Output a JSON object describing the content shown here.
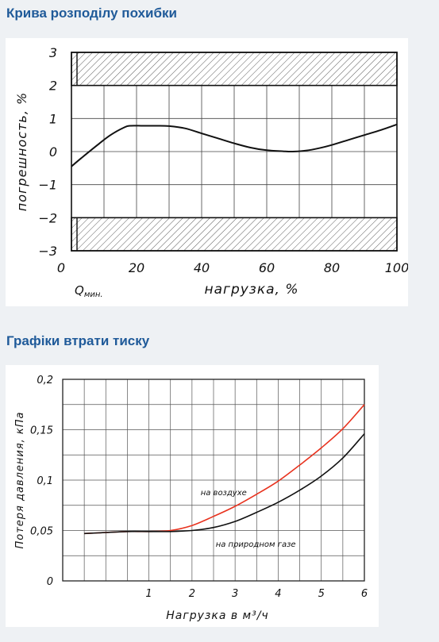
{
  "sections": [
    {
      "title": "Крива розподілу похибки"
    },
    {
      "title": "Графіки втрати тиску"
    }
  ],
  "chart_data": [
    {
      "type": "line",
      "title": "",
      "xlabel": "нагрузка, %",
      "ylabel": "погрешность, %",
      "x_min_label": "Qмин.",
      "x_min_label_main": "Q",
      "x_min_label_sub": "мин.",
      "xlim": [
        0,
        100
      ],
      "ylim": [
        -3,
        3
      ],
      "x_ticks": [
        "0",
        "20",
        "40",
        "60",
        "80",
        "100"
      ],
      "y_ticks": [
        "3",
        "2",
        "1",
        "0",
        "−1",
        "−2",
        "−3"
      ],
      "grid": true,
      "hatched_bands": [
        [
          2,
          3
        ],
        [
          -3,
          -2
        ]
      ],
      "series": [
        {
          "x": [
            0,
            3,
            8,
            12,
            16,
            18,
            22,
            26,
            30,
            35,
            40,
            45,
            50,
            55,
            60,
            65,
            68,
            72,
            76,
            80,
            85,
            90,
            95,
            100
          ],
          "y": [
            -0.45,
            -0.2,
            0.2,
            0.5,
            0.72,
            0.78,
            0.78,
            0.78,
            0.77,
            0.7,
            0.55,
            0.4,
            0.25,
            0.12,
            0.04,
            0.01,
            0.0,
            0.03,
            0.1,
            0.2,
            0.35,
            0.5,
            0.65,
            0.82
          ]
        }
      ]
    },
    {
      "type": "line",
      "title": "",
      "xlabel": "Нагрузка  в  м³/ч",
      "ylabel": "Потеря  давления,  кПа",
      "xlim": [
        0,
        6
      ],
      "ylim": [
        0,
        0.2
      ],
      "x_ticks": [
        "1",
        "2",
        "3",
        "4",
        "5",
        "6"
      ],
      "y_ticks": [
        "0,2",
        "0,15",
        "0,1",
        "0,05",
        "0"
      ],
      "grid": true,
      "series": [
        {
          "name": "на воздухе",
          "color": "#e8321e",
          "x": [
            -0.5,
            0,
            0.5,
            1,
            1.5,
            2,
            2.5,
            3,
            3.5,
            4,
            4.5,
            5,
            5.5,
            6
          ],
          "y": [
            0.047,
            0.048,
            0.049,
            0.049,
            0.05,
            0.055,
            0.064,
            0.074,
            0.086,
            0.099,
            0.115,
            0.132,
            0.151,
            0.175
          ]
        },
        {
          "name": "на природном газе",
          "color": "#111111",
          "x": [
            -0.5,
            0,
            0.5,
            1,
            1.5,
            2,
            2.5,
            3,
            3.5,
            4,
            4.5,
            5,
            5.5,
            6
          ],
          "y": [
            0.047,
            0.048,
            0.049,
            0.049,
            0.049,
            0.05,
            0.053,
            0.059,
            0.068,
            0.078,
            0.09,
            0.104,
            0.122,
            0.146
          ]
        }
      ]
    }
  ]
}
